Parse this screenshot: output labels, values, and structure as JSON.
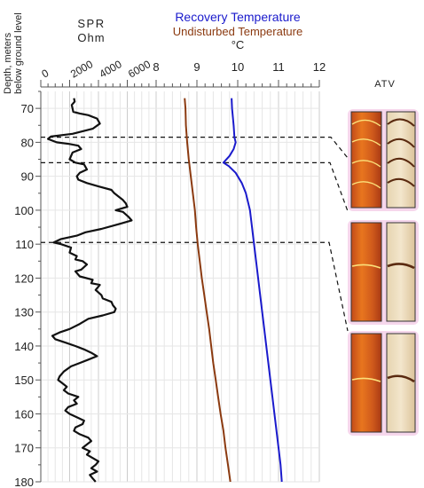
{
  "chart_data": {
    "type": "line",
    "y_axis": {
      "label_lines": [
        "Depth, meters",
        "below ground level"
      ],
      "range": [
        65,
        180
      ],
      "inverted": true,
      "ticks": [
        70,
        80,
        90,
        100,
        110,
        120,
        130,
        140,
        150,
        160,
        170,
        180
      ]
    },
    "panel_spr": {
      "title": "SPR",
      "unit": "Ohm",
      "x_range": [
        0,
        8000
      ],
      "ticks": [
        0,
        2000,
        4000,
        6000
      ],
      "series": [
        {
          "name": "SPR",
          "color": "#111111",
          "points": [
            [
              2300,
              67
            ],
            [
              2350,
              68
            ],
            [
              2150,
              69
            ],
            [
              2250,
              71
            ],
            [
              2700,
              71.5
            ],
            [
              3300,
              72
            ],
            [
              3900,
              73
            ],
            [
              4100,
              74.5
            ],
            [
              3600,
              76
            ],
            [
              2200,
              77.5
            ],
            [
              700,
              78.3
            ],
            [
              500,
              79
            ],
            [
              1100,
              80
            ],
            [
              2000,
              80.5
            ],
            [
              2600,
              81
            ],
            [
              2800,
              82
            ],
            [
              2200,
              83
            ],
            [
              2000,
              85
            ],
            [
              2400,
              86
            ],
            [
              3000,
              86.5
            ],
            [
              3200,
              88
            ],
            [
              2700,
              89
            ],
            [
              2500,
              90
            ],
            [
              2600,
              91
            ],
            [
              3200,
              92
            ],
            [
              4000,
              93
            ],
            [
              4900,
              94
            ],
            [
              5100,
              95
            ],
            [
              5400,
              96
            ],
            [
              5700,
              97
            ],
            [
              5900,
              98
            ],
            [
              6000,
              99
            ],
            [
              5200,
              100
            ],
            [
              5700,
              100.5
            ],
            [
              6100,
              102
            ],
            [
              6300,
              103
            ],
            [
              5500,
              104
            ],
            [
              4200,
              105.5
            ],
            [
              3100,
              106.5
            ],
            [
              2500,
              107.5
            ],
            [
              1400,
              108.5
            ],
            [
              900,
              109.5
            ],
            [
              1400,
              110
            ],
            [
              2100,
              111
            ],
            [
              2000,
              112.5
            ],
            [
              2500,
              113.5
            ],
            [
              2400,
              114.5
            ],
            [
              2900,
              115
            ],
            [
              3200,
              116
            ],
            [
              2800,
              117.5
            ],
            [
              2400,
              118
            ],
            [
              2700,
              119.5
            ],
            [
              3600,
              120.5
            ],
            [
              3500,
              121.5
            ],
            [
              4100,
              122
            ],
            [
              3800,
              123.5
            ],
            [
              4200,
              125
            ],
            [
              4300,
              126
            ],
            [
              4900,
              127
            ],
            [
              5000,
              128
            ],
            [
              5200,
              129
            ],
            [
              5100,
              130
            ],
            [
              4300,
              131
            ],
            [
              3300,
              132
            ],
            [
              2700,
              133.5
            ],
            [
              2000,
              135
            ],
            [
              1300,
              136
            ],
            [
              800,
              137
            ],
            [
              1000,
              138
            ],
            [
              1700,
              139
            ],
            [
              2400,
              140
            ],
            [
              3000,
              141
            ],
            [
              3500,
              142
            ],
            [
              3900,
              143
            ],
            [
              3300,
              144
            ],
            [
              2700,
              145
            ],
            [
              2100,
              146
            ],
            [
              1600,
              147.5
            ],
            [
              1300,
              149
            ],
            [
              1200,
              150
            ],
            [
              1500,
              151
            ],
            [
              1800,
              152
            ],
            [
              1600,
              153
            ],
            [
              1900,
              154
            ],
            [
              2600,
              155
            ],
            [
              2300,
              156
            ],
            [
              2500,
              157
            ],
            [
              1900,
              158
            ],
            [
              1700,
              159
            ],
            [
              2000,
              160
            ],
            [
              2500,
              161
            ],
            [
              3000,
              162
            ],
            [
              2900,
              163
            ],
            [
              2400,
              164
            ],
            [
              2300,
              165
            ],
            [
              2700,
              166
            ],
            [
              3300,
              167
            ],
            [
              3500,
              168
            ],
            [
              3200,
              169
            ],
            [
              2900,
              170
            ],
            [
              3400,
              171
            ],
            [
              3200,
              172
            ],
            [
              3600,
              173
            ],
            [
              4000,
              174
            ],
            [
              3800,
              175
            ],
            [
              3500,
              176
            ],
            [
              3900,
              177
            ],
            [
              3400,
              178
            ],
            [
              3600,
              179
            ],
            [
              3800,
              180
            ]
          ]
        }
      ]
    },
    "panel_temperature": {
      "title_recovery": "Recovery Temperature",
      "title_undisturbed": "Undisturbed Temperature",
      "unit": "°C",
      "x_range": [
        8,
        12
      ],
      "ticks": [
        8,
        9,
        10,
        11,
        12
      ],
      "series": [
        {
          "name": "Recovery Temperature",
          "color": "#1a1acc",
          "points": [
            [
              9.85,
              67
            ],
            [
              9.86,
              70
            ],
            [
              9.9,
              75
            ],
            [
              9.92,
              78.5
            ],
            [
              9.95,
              80
            ],
            [
              9.9,
              82
            ],
            [
              9.8,
              84
            ],
            [
              9.65,
              86
            ],
            [
              9.78,
              87
            ],
            [
              9.95,
              89
            ],
            [
              10.1,
              92
            ],
            [
              10.2,
              95
            ],
            [
              10.3,
              100
            ],
            [
              10.35,
              105
            ],
            [
              10.4,
              110
            ],
            [
              10.45,
              115
            ],
            [
              10.5,
              120
            ],
            [
              10.55,
              125
            ],
            [
              10.6,
              130
            ],
            [
              10.65,
              135
            ],
            [
              10.7,
              140
            ],
            [
              10.75,
              145
            ],
            [
              10.8,
              150
            ],
            [
              10.85,
              155
            ],
            [
              10.9,
              160
            ],
            [
              10.95,
              165
            ],
            [
              11,
              170
            ],
            [
              11.05,
              175
            ],
            [
              11.08,
              180
            ]
          ]
        },
        {
          "name": "Undisturbed Temperature",
          "color": "#8b3a10",
          "points": [
            [
              8.7,
              67
            ],
            [
              8.72,
              70
            ],
            [
              8.73,
              75
            ],
            [
              8.76,
              80
            ],
            [
              8.8,
              85
            ],
            [
              8.85,
              90
            ],
            [
              8.9,
              95
            ],
            [
              8.95,
              100
            ],
            [
              8.98,
              105
            ],
            [
              9.02,
              110
            ],
            [
              9.07,
              115
            ],
            [
              9.12,
              120
            ],
            [
              9.18,
              125
            ],
            [
              9.24,
              130
            ],
            [
              9.3,
              135
            ],
            [
              9.35,
              140
            ],
            [
              9.4,
              145
            ],
            [
              9.46,
              150
            ],
            [
              9.52,
              155
            ],
            [
              9.58,
              160
            ],
            [
              9.65,
              165
            ],
            [
              9.7,
              170
            ],
            [
              9.76,
              175
            ],
            [
              9.82,
              180
            ]
          ]
        }
      ]
    },
    "marker_depths": [
      78.5,
      86,
      109.5
    ],
    "atv": {
      "label": "ATV"
    }
  }
}
